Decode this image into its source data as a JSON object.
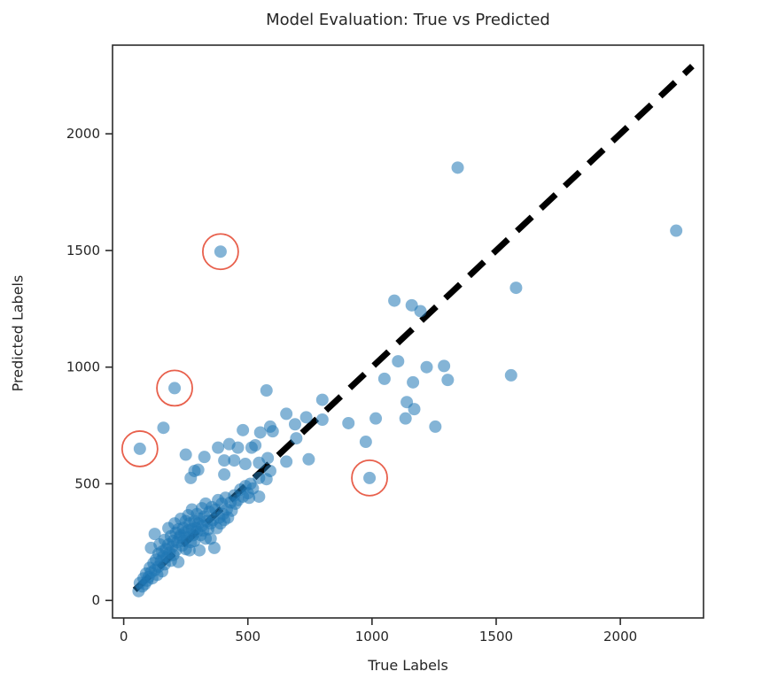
{
  "figure": {
    "background": "#ffffff",
    "text_color": "#262626",
    "axis_color": "#2b2b2b"
  },
  "chart_data": {
    "type": "scatter",
    "title": "Model Evaluation: True vs Predicted",
    "xlabel": "True Labels",
    "ylabel": "Predicted Labels",
    "xlim": [
      -45,
      2335
    ],
    "ylim": [
      -75,
      2380
    ],
    "x_ticks": [
      0,
      500,
      1000,
      1500,
      2000
    ],
    "y_ticks": [
      0,
      500,
      1000,
      1500,
      2000
    ],
    "grid": false,
    "legend": false,
    "marker_color": "#1f77b4",
    "marker_alpha": 0.55,
    "identity_line": {
      "x1": 45,
      "y1": 45,
      "x2": 2290,
      "y2": 2290,
      "style": "dashed",
      "color": "#000000"
    },
    "outlier_circle_color": "#e8604c",
    "highlighted_outliers": [
      [
        390,
        1495
      ],
      [
        205,
        910
      ],
      [
        65,
        650
      ],
      [
        990,
        525
      ]
    ],
    "points": [
      [
        390,
        1495
      ],
      [
        205,
        910
      ],
      [
        65,
        650
      ],
      [
        990,
        525
      ],
      [
        1345,
        1855
      ],
      [
        2225,
        1585
      ],
      [
        1580,
        1340
      ],
      [
        1560,
        965
      ],
      [
        1090,
        1285
      ],
      [
        1160,
        1265
      ],
      [
        1195,
        1240
      ],
      [
        1105,
        1025
      ],
      [
        1050,
        950
      ],
      [
        1165,
        935
      ],
      [
        1220,
        1000
      ],
      [
        1290,
        1005
      ],
      [
        1305,
        945
      ],
      [
        1140,
        850
      ],
      [
        1170,
        820
      ],
      [
        1135,
        780
      ],
      [
        1255,
        745
      ],
      [
        1015,
        780
      ],
      [
        905,
        760
      ],
      [
        975,
        680
      ],
      [
        575,
        900
      ],
      [
        655,
        800
      ],
      [
        690,
        755
      ],
      [
        735,
        785
      ],
      [
        800,
        860
      ],
      [
        800,
        775
      ],
      [
        695,
        695
      ],
      [
        590,
        745
      ],
      [
        550,
        720
      ],
      [
        600,
        725
      ],
      [
        530,
        665
      ],
      [
        515,
        655
      ],
      [
        655,
        595
      ],
      [
        745,
        605
      ],
      [
        160,
        740
      ],
      [
        250,
        625
      ],
      [
        285,
        555
      ],
      [
        480,
        730
      ],
      [
        425,
        670
      ],
      [
        460,
        655
      ],
      [
        380,
        655
      ],
      [
        405,
        600
      ],
      [
        445,
        600
      ],
      [
        490,
        585
      ],
      [
        545,
        590
      ],
      [
        325,
        615
      ],
      [
        300,
        560
      ],
      [
        405,
        540
      ],
      [
        545,
        525
      ],
      [
        270,
        525
      ],
      [
        545,
        445
      ],
      [
        505,
        440
      ],
      [
        575,
        520
      ],
      [
        590,
        555
      ],
      [
        580,
        610
      ],
      [
        60,
        40
      ],
      [
        65,
        75
      ],
      [
        75,
        60
      ],
      [
        80,
        95
      ],
      [
        85,
        70
      ],
      [
        90,
        115
      ],
      [
        95,
        85
      ],
      [
        100,
        100
      ],
      [
        105,
        140
      ],
      [
        110,
        120
      ],
      [
        110,
        225
      ],
      [
        115,
        95
      ],
      [
        120,
        160
      ],
      [
        125,
        130
      ],
      [
        125,
        285
      ],
      [
        130,
        175
      ],
      [
        135,
        110
      ],
      [
        140,
        200
      ],
      [
        140,
        145
      ],
      [
        145,
        240
      ],
      [
        150,
        170
      ],
      [
        155,
        125
      ],
      [
        155,
        210
      ],
      [
        160,
        190
      ],
      [
        165,
        260
      ],
      [
        165,
        155
      ],
      [
        170,
        220
      ],
      [
        175,
        185
      ],
      [
        180,
        310
      ],
      [
        180,
        240
      ],
      [
        185,
        205
      ],
      [
        190,
        170
      ],
      [
        190,
        275
      ],
      [
        195,
        230
      ],
      [
        200,
        255
      ],
      [
        200,
        195
      ],
      [
        205,
        330
      ],
      [
        210,
        290
      ],
      [
        210,
        215
      ],
      [
        215,
        250
      ],
      [
        220,
        165
      ],
      [
        220,
        305
      ],
      [
        225,
        270
      ],
      [
        230,
        280
      ],
      [
        230,
        350
      ],
      [
        235,
        235
      ],
      [
        240,
        310
      ],
      [
        240,
        255
      ],
      [
        245,
        290
      ],
      [
        250,
        220
      ],
      [
        250,
        340
      ],
      [
        255,
        270
      ],
      [
        260,
        365
      ],
      [
        260,
        300
      ],
      [
        265,
        215
      ],
      [
        265,
        330
      ],
      [
        270,
        250
      ],
      [
        275,
        305
      ],
      [
        275,
        390
      ],
      [
        280,
        280
      ],
      [
        285,
        340
      ],
      [
        285,
        255
      ],
      [
        290,
        310
      ],
      [
        295,
        370
      ],
      [
        295,
        295
      ],
      [
        300,
        330
      ],
      [
        305,
        215
      ],
      [
        305,
        350
      ],
      [
        310,
        280
      ],
      [
        315,
        395
      ],
      [
        315,
        320
      ],
      [
        320,
        300
      ],
      [
        325,
        360
      ],
      [
        330,
        265
      ],
      [
        330,
        415
      ],
      [
        335,
        340
      ],
      [
        340,
        305
      ],
      [
        345,
        380
      ],
      [
        350,
        330
      ],
      [
        350,
        265
      ],
      [
        355,
        400
      ],
      [
        360,
        345
      ],
      [
        365,
        225
      ],
      [
        370,
        390
      ],
      [
        375,
        310
      ],
      [
        380,
        430
      ],
      [
        385,
        355
      ],
      [
        390,
        330
      ],
      [
        395,
        415
      ],
      [
        400,
        370
      ],
      [
        405,
        345
      ],
      [
        410,
        440
      ],
      [
        415,
        390
      ],
      [
        420,
        355
      ],
      [
        430,
        420
      ],
      [
        435,
        385
      ],
      [
        445,
        450
      ],
      [
        450,
        415
      ],
      [
        460,
        430
      ],
      [
        470,
        475
      ],
      [
        480,
        445
      ],
      [
        490,
        490
      ],
      [
        500,
        460
      ],
      [
        510,
        500
      ],
      [
        520,
        480
      ]
    ]
  }
}
